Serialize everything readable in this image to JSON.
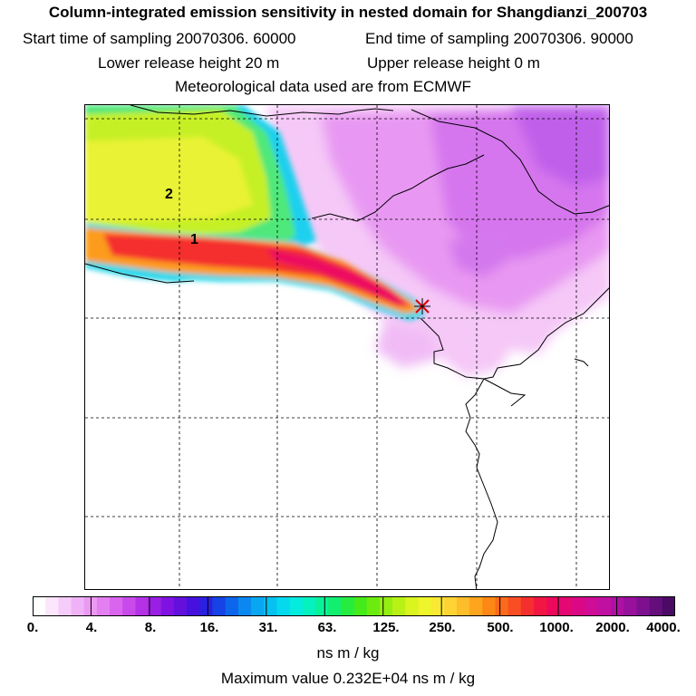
{
  "header": {
    "title": "Column-integrated emission sensitivity in nested domain for Shangdianzi_200703",
    "start_time": "Start time of sampling 20070306. 60000",
    "end_time": "End time of sampling 20070306. 90000",
    "lower_height": "Lower release height   20 m",
    "upper_height": "Upper release height    0 m",
    "met_data": "Meteorological data used are from ECMWF"
  },
  "map": {
    "station_marker": "station-marker",
    "annotations": [
      "1",
      "2"
    ],
    "colors": {
      "frame": "#000000",
      "grid": "#000000",
      "coastline": "#000000"
    }
  },
  "legend": {
    "unit": "ns m / kg",
    "max_value": "Maximum value  0.232E+04 ns m / kg",
    "tick_labels": [
      "0.",
      "4.",
      "8.",
      "16.",
      "31.",
      "63.",
      "125.",
      "250.",
      "500.",
      "1000.",
      "2000.",
      "4000."
    ],
    "colors": [
      "#ffffff",
      "#fbe6fd",
      "#f6ccfa",
      "#f0b2f7",
      "#ec99f3",
      "#e47ff1",
      "#d964ee",
      "#c94aea",
      "#b431e6",
      "#9a1ee3",
      "#7f12e0",
      "#6310dd",
      "#4611dc",
      "#2a21e0",
      "#1543e6",
      "#0c66ec",
      "#0a88f0",
      "#09a6f2",
      "#07c1f1",
      "#05d9ee",
      "#05ebde",
      "#05f2c0",
      "#09f29a",
      "#12ee6f",
      "#26ec40",
      "#45ea1a",
      "#6ceb10",
      "#95ee12",
      "#b9f117",
      "#d9f41f",
      "#eef52b",
      "#f8e933",
      "#fdd434",
      "#febd2a",
      "#fea41d",
      "#fd8816",
      "#fb6a1a",
      "#f94d24",
      "#f52e2e",
      "#f21642",
      "#ec095c",
      "#e40872",
      "#db0885",
      "#cf0c96",
      "#c010a1",
      "#ad10a3",
      "#97119d",
      "#7e108f",
      "#640e7c",
      "#4b0a64"
    ]
  }
}
